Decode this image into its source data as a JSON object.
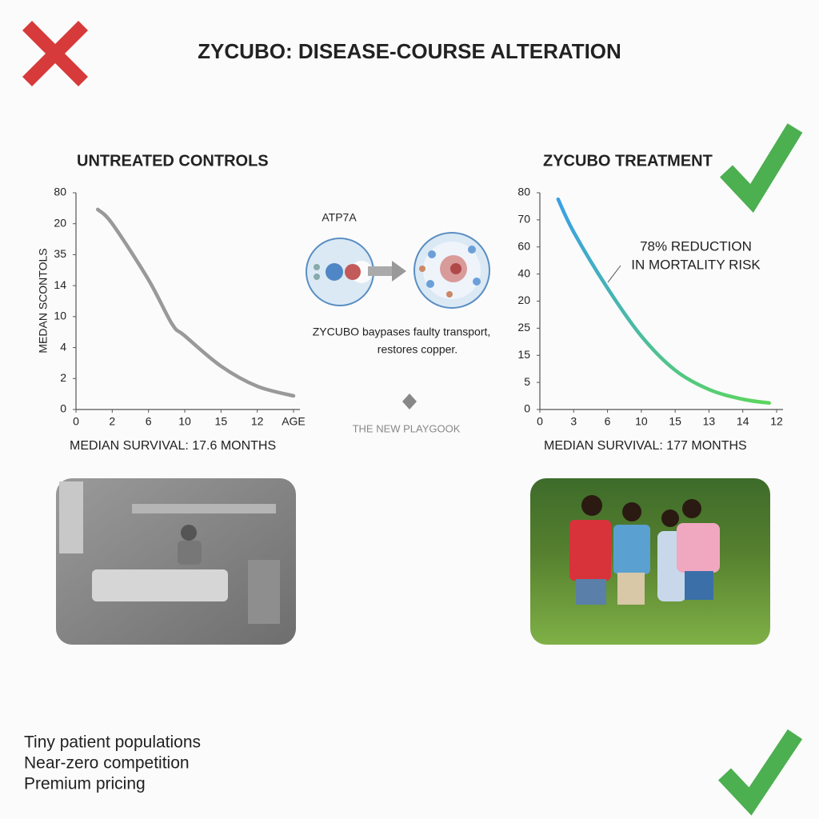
{
  "title": "ZYCUBO: DISEASE-COURSE ALTERATION",
  "chart_data": [
    {
      "type": "line",
      "title": "UNTREATED CONTROLS",
      "ylabel": "MEDAN SCONTOLS",
      "x": [
        0.6,
        1,
        2,
        2.65,
        3,
        4,
        5,
        6
      ],
      "series": [
        {
          "color": "#999999",
          "values": [
            6.46,
            6.0,
            4.19,
            2.76,
            2.38,
            1.4,
            0.75,
            0.44
          ]
        }
      ],
      "xlim": [
        0,
        6
      ],
      "ylim": [
        0,
        7
      ],
      "xticks": [
        {
          "value": 0,
          "label": "0"
        },
        {
          "value": 1,
          "label": "2"
        },
        {
          "value": 2,
          "label": "6"
        },
        {
          "value": 3,
          "label": "10"
        },
        {
          "value": 4,
          "label": "15"
        },
        {
          "value": 5,
          "label": "12"
        },
        {
          "value": 6,
          "label": "AGE"
        }
      ],
      "yticks": [
        {
          "value": 0,
          "label": "0"
        },
        {
          "value": 1,
          "label": "2"
        },
        {
          "value": 2,
          "label": "4"
        },
        {
          "value": 3,
          "label": "10"
        },
        {
          "value": 4,
          "label": "14"
        },
        {
          "value": 5,
          "label": "35"
        },
        {
          "value": 6,
          "label": "20"
        },
        {
          "value": 7,
          "label": "80"
        }
      ],
      "caption": "MEDIAN SURVIVAL: 17.6 MONTHS"
    },
    {
      "type": "line",
      "title": "ZYCUBO TREATMENT",
      "x": [
        0.54,
        1,
        2,
        3,
        4,
        5,
        6,
        6.78
      ],
      "series": [
        {
          "color": "#3aa0e8",
          "color_end": "#5cd65c",
          "values": [
            7.76,
            6.55,
            4.48,
            2.71,
            1.45,
            0.74,
            0.38,
            0.24
          ]
        }
      ],
      "xlim": [
        0,
        7
      ],
      "ylim": [
        0,
        8
      ],
      "xticks": [
        {
          "value": 0,
          "label": "0"
        },
        {
          "value": 1,
          "label": "3"
        },
        {
          "value": 2,
          "label": "6"
        },
        {
          "value": 3,
          "label": "10"
        },
        {
          "value": 4,
          "label": "15"
        },
        {
          "value": 5,
          "label": "13"
        },
        {
          "value": 6,
          "label": "14"
        },
        {
          "value": 7,
          "label": "12"
        }
      ],
      "yticks": [
        {
          "value": 0,
          "label": "0"
        },
        {
          "value": 1,
          "label": "5"
        },
        {
          "value": 2,
          "label": "15"
        },
        {
          "value": 3,
          "label": "25"
        },
        {
          "value": 4,
          "label": "20"
        },
        {
          "value": 5,
          "label": "40"
        },
        {
          "value": 6,
          "label": "60"
        },
        {
          "value": 7,
          "label": "70"
        },
        {
          "value": 8,
          "label": "80"
        }
      ],
      "annotation": [
        "78% REDUCTION",
        "IN MORTALITY RISK"
      ],
      "caption": "MEDIAN SURVIVAL: 177 MONTHS"
    }
  ],
  "center": {
    "label": "ATP7A",
    "text": [
      "ZYCUBO baypases faulty transport,",
      "restores copper."
    ],
    "footer": "THE NEW PLAYGOOK"
  },
  "bullets": [
    "Tiny patient populations",
    "Near-zero competition",
    "Premium pricing"
  ]
}
